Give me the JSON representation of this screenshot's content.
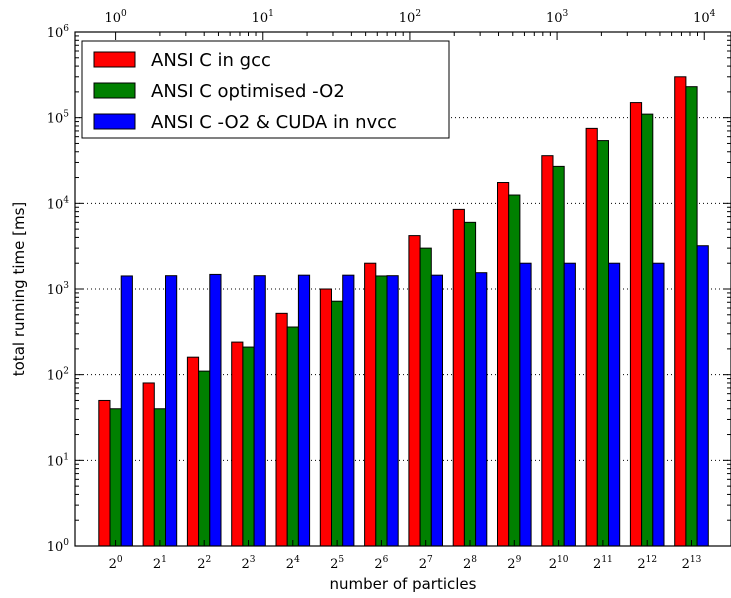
{
  "chart_data": {
    "type": "bar",
    "xlabel": "number of particles",
    "ylabel": "total running time [ms]",
    "yscale": "log",
    "ylim": [
      1,
      1000000
    ],
    "grid": "y-dotted",
    "legend_position": "top-left",
    "categories": [
      "2^0",
      "2^1",
      "2^2",
      "2^3",
      "2^4",
      "2^5",
      "2^6",
      "2^7",
      "2^8",
      "2^9",
      "2^10",
      "2^11",
      "2^12",
      "2^13"
    ],
    "category_bases": [
      "2",
      "2",
      "2",
      "2",
      "2",
      "2",
      "2",
      "2",
      "2",
      "2",
      "2",
      "2",
      "2",
      "2"
    ],
    "category_exponents": [
      "0",
      "1",
      "2",
      "3",
      "4",
      "5",
      "6",
      "7",
      "8",
      "9",
      "10",
      "11",
      "12",
      "13"
    ],
    "y_ticks": [
      {
        "base": "10",
        "exp": "0"
      },
      {
        "base": "10",
        "exp": "1"
      },
      {
        "base": "10",
        "exp": "2"
      },
      {
        "base": "10",
        "exp": "3"
      },
      {
        "base": "10",
        "exp": "4"
      },
      {
        "base": "10",
        "exp": "5"
      },
      {
        "base": "10",
        "exp": "6"
      }
    ],
    "top_axis": {
      "scale": "log",
      "ticks": [
        {
          "base": "10",
          "exp": "0",
          "value": 1
        },
        {
          "base": "10",
          "exp": "1",
          "value": 10
        },
        {
          "base": "10",
          "exp": "2",
          "value": 100
        },
        {
          "base": "10",
          "exp": "3",
          "value": 1000
        },
        {
          "base": "10",
          "exp": "4",
          "value": 10000
        }
      ]
    },
    "series": [
      {
        "name": "ANSI C in gcc",
        "color": "#ff0000",
        "values": [
          50,
          80,
          160,
          240,
          520,
          1000,
          2000,
          4200,
          8500,
          17500,
          36000,
          75000,
          150000,
          300000
        ]
      },
      {
        "name": "ANSI C optimised -O2",
        "color": "#008000",
        "values": [
          40,
          40,
          110,
          210,
          360,
          720,
          1420,
          3000,
          6000,
          12500,
          27000,
          54000,
          110000,
          230000
        ]
      },
      {
        "name": "ANSI C -O2 & CUDA in nvcc",
        "color": "#0000ff",
        "values": [
          1420,
          1430,
          1480,
          1430,
          1450,
          1450,
          1430,
          1450,
          1550,
          2000,
          2000,
          2000,
          2000,
          3200
        ]
      }
    ]
  }
}
